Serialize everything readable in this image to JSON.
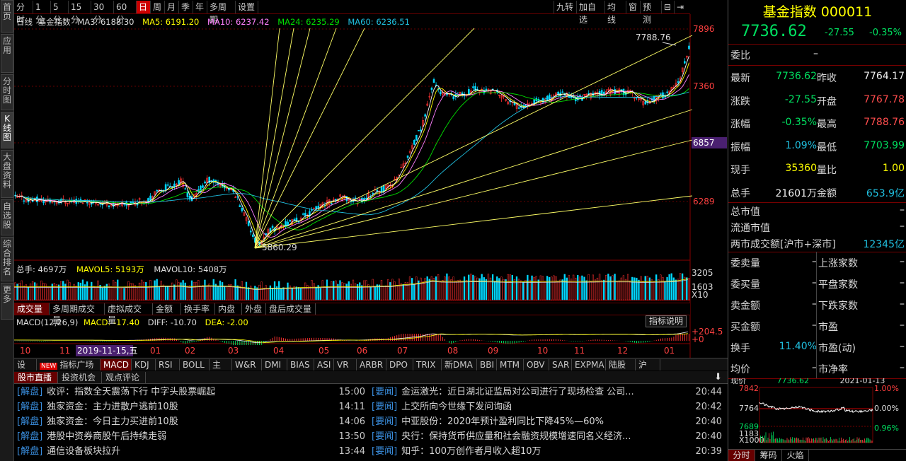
{
  "left_nav": [
    "首页",
    "应用",
    "分时图",
    "K线图",
    "大盘资料",
    "自选股",
    "综合排名",
    "更多"
  ],
  "periods": [
    "分时",
    "1分",
    "5分",
    "15分",
    "30分",
    "60分",
    "日",
    "周",
    "月",
    "季",
    "年",
    "多周期",
    "设置"
  ],
  "active_period": "日",
  "toolbar_right": [
    "九转",
    "加自选",
    "均线",
    "窗",
    "预测"
  ],
  "legend": {
    "type": "日线",
    "name": "基金指数",
    "ma3": "MA3: 6188.30",
    "ma5": "MA5: 6191.20",
    "ma10": "MA10: 6237.42",
    "ma24": "MA24: 6235.29",
    "ma60": "MA60: 6236.51"
  },
  "price_axis": [
    "7896",
    "7360",
    "6857",
    "6289"
  ],
  "price_highlight": "6857",
  "max_label": "7788.76",
  "min_label": "5860.29",
  "vol_legend": {
    "total": "总手: 4697万",
    "mavol5": "MAVOL5: 5193万",
    "mavol10": "MAVOL10: 5408万"
  },
  "vol_axis": [
    "3205",
    "1603",
    "X10"
  ],
  "vol_tabs": [
    "成交量",
    "多周期成交量",
    "虚拟成交量",
    "金额",
    "换手率",
    "内盘",
    "外盘",
    "盘后成交量"
  ],
  "macd_legend": {
    "name": "MACD(12,26,9)",
    "macd": "MACD: -17.40",
    "diff": "DIFF: -10.70",
    "dea": "DEA: -2.00"
  },
  "macd_btn": "指标说明",
  "macd_axis": [
    "+204.5",
    "+0"
  ],
  "date_axis": [
    "10",
    "11",
    "01",
    "02",
    "03",
    "04",
    "05",
    "06",
    "07",
    "08",
    "09",
    "10",
    "11",
    "12",
    "01"
  ],
  "date_highlight": "2019-11-15,五",
  "ind_tabs": [
    "设置",
    "指标广场",
    "MACD",
    "KDJ",
    "RSI",
    "BOLL",
    "主力",
    "W&R",
    "DMI",
    "BIAS",
    "ASI",
    "VR",
    "ARBR",
    "DPO",
    "TRIX",
    "新DMA",
    "BBI",
    "MTM",
    "OBV",
    "SAR",
    "EXPMA",
    "陆股通",
    "沪股..."
  ],
  "ind_new_badge": "NEW",
  "news_tabs": [
    "股市直播",
    "投资机会",
    "观点评论"
  ],
  "news_left": [
    {
      "tag": "[解盘]",
      "title": "收评：指数全天震荡下行 中字头股票崛起",
      "time": "15:00"
    },
    {
      "tag": "[解盘]",
      "title": "独家资金：主力进散户逃前10股",
      "time": "14:11"
    },
    {
      "tag": "[解盘]",
      "title": "独家资金：今日主力买进前10股",
      "time": "14:06"
    },
    {
      "tag": "[解盘]",
      "title": "港股中资券商股午后持续走弱",
      "time": "13:50"
    },
    {
      "tag": "[解盘]",
      "title": "通信设备板块拉升",
      "time": "13:44"
    }
  ],
  "news_right": [
    {
      "tag": "[要闻]",
      "title": "金运激光：近日湖北证监局对公司进行了现场检查 公司...",
      "time": "20:44"
    },
    {
      "tag": "[要闻]",
      "title": "上交所向今世缘下发问询函",
      "time": "20:42"
    },
    {
      "tag": "[要闻]",
      "title": "中亚股份：2020年预计盈利同比下降45%—60%",
      "time": "20:40"
    },
    {
      "tag": "[要闻]",
      "title": "央行：保持货币供应量和社会融资规模增速同名义经济...",
      "time": "20:40"
    },
    {
      "tag": "[要闻]",
      "title": "知乎：100万创作者月收入超10万",
      "time": "20:39"
    }
  ],
  "quote": {
    "title": "基金指数 000011",
    "price": "7736.62",
    "change": "-27.55",
    "pct": "-0.35%",
    "weibi": "委比",
    "weibi_v": "–",
    "rows": [
      {
        "l1": "最新",
        "v1": "7736.62",
        "c1": "grn",
        "l2": "昨收",
        "v2": "7764.17",
        "c2": "wht"
      },
      {
        "l1": "涨跌",
        "v1": "-27.55",
        "c1": "grn",
        "l2": "开盘",
        "v2": "7767.78",
        "c2": "red"
      },
      {
        "l1": "涨幅",
        "v1": "-0.35%",
        "c1": "grn",
        "l2": "最高",
        "v2": "7788.76",
        "c2": "red"
      },
      {
        "l1": "振幅",
        "v1": "1.09%",
        "c1": "cyan",
        "l2": "最低",
        "v2": "7703.99",
        "c2": "grn"
      },
      {
        "l1": "现手",
        "v1": "35360",
        "c1": "yel",
        "l2": "量比",
        "v2": "1.00",
        "c2": "yel"
      },
      {
        "l1": "总手",
        "v1": "21601万",
        "c1": "wht",
        "l2": "金额",
        "v2": "653.9亿",
        "c2": "cyan"
      }
    ],
    "mkt": [
      {
        "l": "总市值",
        "v": "–"
      },
      {
        "l": "流通市值",
        "v": "–"
      },
      {
        "l": "两市成交额[沪市+深市]",
        "v": "12345亿"
      }
    ],
    "bottom": [
      {
        "l1": "委卖量",
        "v1": "–",
        "l2": "上涨家数",
        "v2": "–"
      },
      {
        "l1": "委买量",
        "v1": "–",
        "l2": "平盘家数",
        "v2": "–"
      },
      {
        "l1": "卖金额",
        "v1": "–",
        "l2": "下跌家数",
        "v2": "–"
      },
      {
        "l1": "买金额",
        "v1": "–",
        "l2": "市盈",
        "v2": "–"
      },
      {
        "l1": "换手",
        "v1": "11.40%",
        "l2": "市盈(动)",
        "v2": "–"
      },
      {
        "l1": "均价",
        "v1": "–",
        "l2": "市净率",
        "v2": "–"
      }
    ],
    "xianjia": "现价",
    "xianjia_v": "7736.62",
    "datetime": "2021-01-13",
    "mini_axis_l": [
      "7842",
      "7764",
      "7689",
      "1183",
      "X1000"
    ],
    "mini_axis_r": [
      "1.00%",
      "0.00%",
      "0.96%"
    ],
    "mini_tabs": [
      "分时",
      "筹码",
      "火焰"
    ]
  },
  "colors": {
    "up": "#ff3030",
    "down": "#00e060",
    "ma5": "#ffff00",
    "ma10": "#ff80ff",
    "ma24": "#00e000",
    "ma60": "#20c0e0",
    "fan": "#ffff66"
  }
}
